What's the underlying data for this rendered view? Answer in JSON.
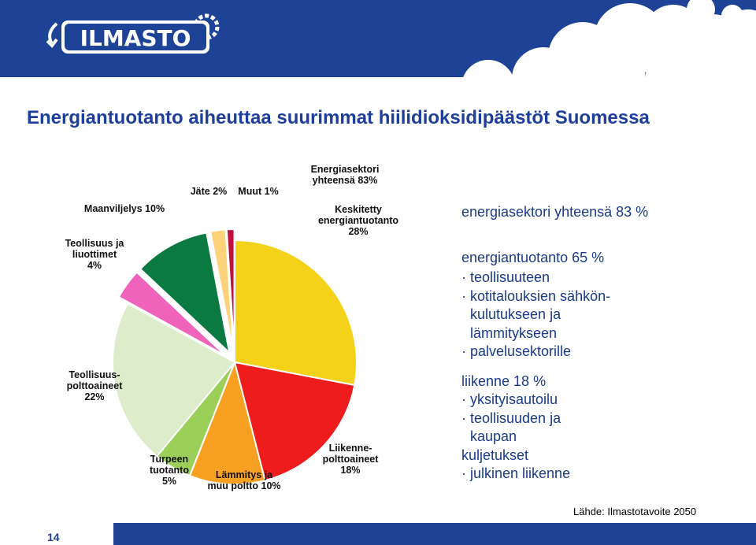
{
  "header": {
    "logo_text": "ILMASTO",
    "colors": {
      "band": "#1e4296",
      "cloud": "#ffffff",
      "logo_text": "#ffffff"
    }
  },
  "slide": {
    "title": "Energiantuotanto aiheuttaa suurimmat hiilidioksidipäästöt Suomessa",
    "page_number": "14",
    "source": "Lähde: Ilmastotavoite 2050",
    "title_color": "#1d3e9a"
  },
  "chart_data": {
    "type": "pie",
    "slices": [
      {
        "value": 28,
        "color": "#f5d21a",
        "explode": false,
        "label": [
          "Keskitetty",
          "energiantuotanto",
          "28%"
        ]
      },
      {
        "value": 18,
        "color": "#ee1c1c",
        "explode": false,
        "label": [
          "Liikenne-",
          "polttoaineet",
          "18%"
        ]
      },
      {
        "value": 10,
        "color": "#f7a021",
        "explode": false,
        "label": [
          "Lämmitys ja",
          "muu poltto 10%"
        ]
      },
      {
        "value": 5,
        "color": "#9ccf5a",
        "explode": false,
        "label": [
          "Turpeen",
          "tuotanto",
          "5%"
        ]
      },
      {
        "value": 22,
        "color": "#ddeccb",
        "explode": false,
        "label": [
          "Teollisuus-",
          "polttoaineet",
          "22%"
        ]
      },
      {
        "value": 4,
        "color": "#f063ba",
        "explode": true,
        "label": [
          "Teollisuus ja",
          "liuottimet",
          "4%"
        ]
      },
      {
        "value": 10,
        "color": "#0a7a42",
        "explode": true,
        "label": [
          "Maanviljelys 10%"
        ]
      },
      {
        "value": 2,
        "color": "#fcd27a",
        "explode": true,
        "label": [
          "Jäte 2%"
        ]
      },
      {
        "value": 1,
        "color": "#c0103b",
        "explode": true,
        "label": [
          "Muut 1%"
        ]
      }
    ],
    "annotation": [
      "Energiasektori",
      "yhteensä 83%"
    ]
  },
  "panel": {
    "heading_1": "energiasektori yhteensä 83 %",
    "heading_2": "energiantuotanto 65 %",
    "items_1": [
      {
        "text": "· teollisuuteen",
        "indent": false
      },
      {
        "text": "· kotitalouksien sähkön-",
        "indent": false
      },
      {
        "text": "kulutukseen ja",
        "indent": true
      },
      {
        "text": "lämmitykseen",
        "indent": true
      },
      {
        "text": "· palvelusektorille",
        "indent": false
      }
    ],
    "heading_3": "liikenne 18 %",
    "items_2": [
      {
        "text": "· yksityisautoilu",
        "indent": false
      },
      {
        "text": "· teollisuuden ja",
        "indent": false
      },
      {
        "text": "kaupan",
        "indent": true
      },
      {
        "text": "kuljetukset",
        "indent": false
      },
      {
        "text": "· julkinen liikenne",
        "indent": false
      }
    ]
  }
}
